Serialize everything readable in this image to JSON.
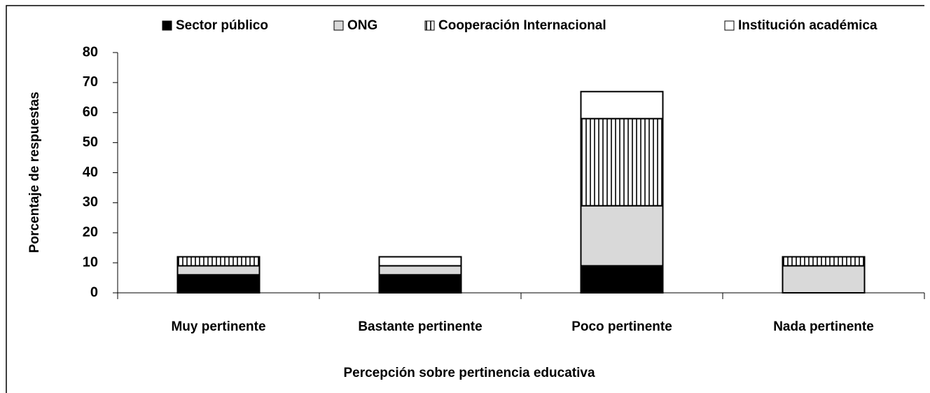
{
  "chart_data": {
    "type": "stacked_bar",
    "xlabel": "Percepción sobre pertinencia educativa",
    "ylabel": "Porcentaje  de respuestas",
    "categories": [
      "Muy pertinente",
      "Bastante pertinente",
      "Poco  pertinente",
      "Nada  pertinente"
    ],
    "series": [
      {
        "name": "Sector público",
        "color": "#000000",
        "values": [
          6,
          6,
          9,
          0
        ]
      },
      {
        "name": "ONG",
        "color": "#d9d9d9",
        "values": [
          3,
          3,
          20,
          9
        ]
      },
      {
        "name": "Cooperación Internacional",
        "color": "#000000",
        "pattern": "vertical-stripes",
        "values": [
          3,
          0,
          29,
          3
        ]
      },
      {
        "name": "Institución académica",
        "color": "#ffffff",
        "values": [
          0,
          3,
          9,
          0
        ]
      }
    ],
    "ylim": [
      0,
      80
    ],
    "yticks": [
      0,
      10,
      20,
      30,
      40,
      50,
      60,
      70,
      80
    ],
    "legend": "top"
  }
}
